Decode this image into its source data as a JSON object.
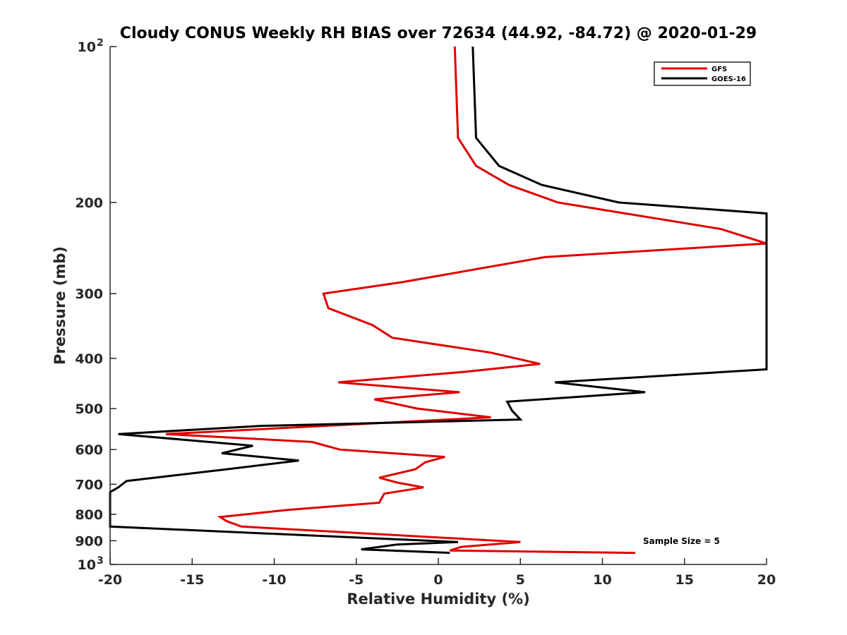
{
  "chart_data": {
    "type": "line",
    "title": "Cloudy CONUS Weekly RH BIAS over 72634 (44.92, -84.72) @ 2020-01-29",
    "xlabel": "Relative Humidity (%)",
    "ylabel": "Pressure (mb)",
    "xlim": [
      -20,
      20
    ],
    "ylim": [
      100,
      1000
    ],
    "yscale": "log",
    "y_reversed": true,
    "grid": false,
    "legend_position": "top-right",
    "annotation": "Sample Size = 5",
    "xticks": [
      {
        "value": -20,
        "label": "-20"
      },
      {
        "value": -15,
        "label": "-15"
      },
      {
        "value": -10,
        "label": "-10"
      },
      {
        "value": -5,
        "label": "-5"
      },
      {
        "value": 0,
        "label": "0"
      },
      {
        "value": 5,
        "label": "5"
      },
      {
        "value": 10,
        "label": "10"
      },
      {
        "value": 15,
        "label": "15"
      },
      {
        "value": 20,
        "label": "20"
      }
    ],
    "yticks": [
      {
        "value": 100,
        "label": "10",
        "sup": "2"
      },
      {
        "value": 200,
        "label": "200"
      },
      {
        "value": 300,
        "label": "300"
      },
      {
        "value": 400,
        "label": "400"
      },
      {
        "value": 500,
        "label": "500"
      },
      {
        "value": 600,
        "label": "600"
      },
      {
        "value": 700,
        "label": "700"
      },
      {
        "value": 800,
        "label": "800"
      },
      {
        "value": 900,
        "label": "900"
      },
      {
        "value": 1000,
        "label": "10",
        "sup": "3"
      }
    ],
    "series": [
      {
        "name": "GFS",
        "color": "#e00000",
        "points": [
          [
            1.0,
            100
          ],
          [
            1.2,
            150
          ],
          [
            2.3,
            170
          ],
          [
            4.3,
            185
          ],
          [
            7.3,
            200
          ],
          [
            17.2,
            225
          ],
          [
            20,
            240
          ],
          [
            6.5,
            255
          ],
          [
            -2.2,
            285
          ],
          [
            -7.0,
            300
          ],
          [
            -6.7,
            320
          ],
          [
            -4.0,
            345
          ],
          [
            -2.8,
            365
          ],
          [
            3.2,
            390
          ],
          [
            6.2,
            410
          ],
          [
            1.5,
            425
          ],
          [
            -6.1,
            445
          ],
          [
            1.3,
            465
          ],
          [
            -3.9,
            480
          ],
          [
            -1.3,
            500
          ],
          [
            3.2,
            520
          ],
          [
            -16.6,
            560
          ],
          [
            -7.7,
            580
          ],
          [
            -6.0,
            600
          ],
          [
            0.4,
            620
          ],
          [
            -0.8,
            635
          ],
          [
            -1.4,
            655
          ],
          [
            -3.6,
            680
          ],
          [
            -2.5,
            695
          ],
          [
            -0.9,
            710
          ],
          [
            -3.3,
            730
          ],
          [
            -3.6,
            760
          ],
          [
            -9.2,
            785
          ],
          [
            -13.3,
            810
          ],
          [
            -12.9,
            825
          ],
          [
            -12.0,
            845
          ],
          [
            5.0,
            905
          ],
          [
            1.4,
            925
          ],
          [
            0.7,
            940
          ],
          [
            12.0,
            950
          ]
        ]
      },
      {
        "name": "GOES-16",
        "color": "#000000",
        "points": [
          [
            2.1,
            100
          ],
          [
            2.3,
            150
          ],
          [
            3.7,
            170
          ],
          [
            6.3,
            185
          ],
          [
            11.0,
            200
          ],
          [
            20,
            210
          ],
          [
            20,
            420
          ],
          [
            7.1,
            445
          ],
          [
            12.6,
            465
          ],
          [
            4.2,
            485
          ],
          [
            4.5,
            505
          ],
          [
            5.0,
            525
          ],
          [
            -10.8,
            540
          ],
          [
            -19.5,
            560
          ],
          [
            -11.3,
            590
          ],
          [
            -13.2,
            610
          ],
          [
            -8.5,
            630
          ],
          [
            -12.9,
            655
          ],
          [
            -19.0,
            690
          ],
          [
            -19.5,
            710
          ],
          [
            -20,
            725
          ],
          [
            -20,
            845
          ],
          [
            1.2,
            905
          ],
          [
            -2.5,
            915
          ],
          [
            -4.7,
            935
          ],
          [
            0.7,
            950
          ]
        ]
      }
    ]
  }
}
